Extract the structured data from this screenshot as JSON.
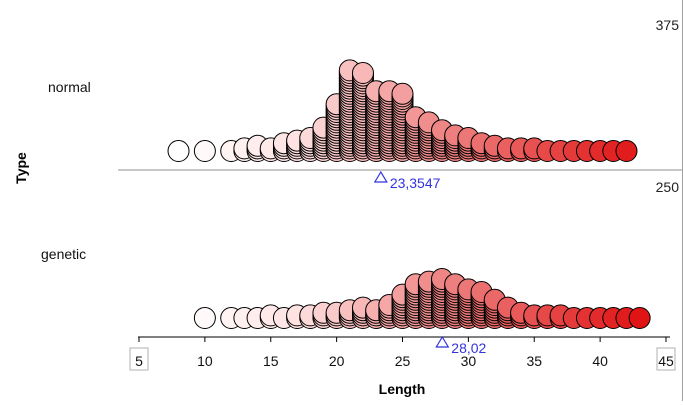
{
  "chart_data": {
    "type": "scatter",
    "title": "",
    "xlabel": "Length",
    "ylabel": "Type",
    "xlim": [
      5,
      45
    ],
    "x_ticks": [
      "5",
      "10",
      "15",
      "20",
      "25",
      "30",
      "35",
      "40",
      "45"
    ],
    "categories": [
      "normal",
      "genetic"
    ],
    "panel_counts": [
      "375",
      "250"
    ],
    "marker_colors": {
      "low": "#ffffff",
      "high": "#e00000",
      "outline": "#000000",
      "mean_marker": "#3333dd"
    },
    "series": [
      {
        "name": "normal",
        "mean": 23.3547,
        "mean_label": "23,3547",
        "distribution": [
          {
            "x": 8,
            "count": 1
          },
          {
            "x": 10,
            "count": 1
          },
          {
            "x": 12,
            "count": 1
          },
          {
            "x": 13,
            "count": 2
          },
          {
            "x": 14,
            "count": 3
          },
          {
            "x": 15,
            "count": 2
          },
          {
            "x": 16,
            "count": 4
          },
          {
            "x": 17,
            "count": 5
          },
          {
            "x": 18,
            "count": 6
          },
          {
            "x": 19,
            "count": 10
          },
          {
            "x": 20,
            "count": 19
          },
          {
            "x": 21,
            "count": 32
          },
          {
            "x": 22,
            "count": 31
          },
          {
            "x": 23,
            "count": 24
          },
          {
            "x": 24,
            "count": 24
          },
          {
            "x": 25,
            "count": 23
          },
          {
            "x": 26,
            "count": 14
          },
          {
            "x": 27,
            "count": 12
          },
          {
            "x": 28,
            "count": 9
          },
          {
            "x": 29,
            "count": 7
          },
          {
            "x": 30,
            "count": 6
          },
          {
            "x": 31,
            "count": 4
          },
          {
            "x": 32,
            "count": 3
          },
          {
            "x": 33,
            "count": 2
          },
          {
            "x": 34,
            "count": 2
          },
          {
            "x": 35,
            "count": 2
          },
          {
            "x": 36,
            "count": 1
          },
          {
            "x": 37,
            "count": 1
          },
          {
            "x": 38,
            "count": 1
          },
          {
            "x": 39,
            "count": 1
          },
          {
            "x": 40,
            "count": 1
          },
          {
            "x": 41,
            "count": 1
          },
          {
            "x": 42,
            "count": 1
          }
        ]
      },
      {
        "name": "genetic",
        "mean": 28.02,
        "mean_label": "28,02",
        "distribution": [
          {
            "x": 10,
            "count": 1
          },
          {
            "x": 12,
            "count": 1
          },
          {
            "x": 13,
            "count": 1
          },
          {
            "x": 14,
            "count": 1
          },
          {
            "x": 15,
            "count": 2
          },
          {
            "x": 16,
            "count": 1
          },
          {
            "x": 17,
            "count": 2
          },
          {
            "x": 18,
            "count": 2
          },
          {
            "x": 19,
            "count": 3
          },
          {
            "x": 20,
            "count": 3
          },
          {
            "x": 21,
            "count": 4
          },
          {
            "x": 22,
            "count": 5
          },
          {
            "x": 23,
            "count": 4
          },
          {
            "x": 24,
            "count": 6
          },
          {
            "x": 25,
            "count": 10
          },
          {
            "x": 26,
            "count": 14
          },
          {
            "x": 27,
            "count": 15
          },
          {
            "x": 28,
            "count": 16
          },
          {
            "x": 29,
            "count": 14
          },
          {
            "x": 30,
            "count": 12
          },
          {
            "x": 31,
            "count": 11
          },
          {
            "x": 32,
            "count": 8
          },
          {
            "x": 33,
            "count": 5
          },
          {
            "x": 34,
            "count": 3
          },
          {
            "x": 35,
            "count": 2
          },
          {
            "x": 36,
            "count": 2
          },
          {
            "x": 37,
            "count": 2
          },
          {
            "x": 38,
            "count": 1
          },
          {
            "x": 39,
            "count": 1
          },
          {
            "x": 40,
            "count": 1
          },
          {
            "x": 41,
            "count": 1
          },
          {
            "x": 42,
            "count": 1
          },
          {
            "x": 43,
            "count": 1
          }
        ]
      }
    ]
  }
}
